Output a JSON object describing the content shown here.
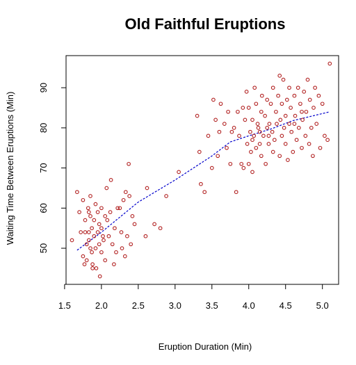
{
  "chart_data": {
    "type": "scatter",
    "title": "Old Faithful Eruptions",
    "xlabel": "Eruption Duration (Min)",
    "ylabel": "Waiting Time Between Eruptions (Min)",
    "xlim": [
      1.52,
      5.22
    ],
    "ylim": [
      41,
      98
    ],
    "xticks": [
      1.5,
      2.0,
      2.5,
      3.0,
      3.5,
      4.0,
      4.5,
      5.0
    ],
    "xtick_labels": [
      "1.5",
      "2.0",
      "2.5",
      "3.0",
      "3.5",
      "4.0",
      "4.5",
      "5.0"
    ],
    "yticks": [
      50,
      60,
      70,
      80,
      90
    ],
    "ytick_labels": [
      "50",
      "60",
      "70",
      "80",
      "90"
    ],
    "grid": false,
    "point_color": "#b22222",
    "line_color": "#0000cc",
    "series": [
      {
        "style": "points",
        "points": [
          [
            1.6,
            52
          ],
          [
            1.67,
            64
          ],
          [
            1.7,
            59
          ],
          [
            1.72,
            54
          ],
          [
            1.75,
            62
          ],
          [
            1.75,
            48
          ],
          [
            1.77,
            46
          ],
          [
            1.78,
            57
          ],
          [
            1.78,
            54
          ],
          [
            1.8,
            51
          ],
          [
            1.8,
            47
          ],
          [
            1.82,
            60
          ],
          [
            1.83,
            59
          ],
          [
            1.83,
            54
          ],
          [
            1.83,
            52
          ],
          [
            1.85,
            63
          ],
          [
            1.85,
            58
          ],
          [
            1.85,
            50
          ],
          [
            1.87,
            55
          ],
          [
            1.87,
            49
          ],
          [
            1.88,
            46
          ],
          [
            1.88,
            45
          ],
          [
            1.9,
            57
          ],
          [
            1.9,
            53
          ],
          [
            1.92,
            61
          ],
          [
            1.92,
            50
          ],
          [
            1.93,
            45
          ],
          [
            1.95,
            59
          ],
          [
            1.95,
            54
          ],
          [
            1.97,
            56
          ],
          [
            1.97,
            51
          ],
          [
            1.98,
            43
          ],
          [
            2.0,
            60
          ],
          [
            2.0,
            55
          ],
          [
            2.0,
            49
          ],
          [
            2.02,
            53
          ],
          [
            2.03,
            52
          ],
          [
            2.05,
            58
          ],
          [
            2.05,
            47
          ],
          [
            2.07,
            65
          ],
          [
            2.08,
            57
          ],
          [
            2.1,
            53
          ],
          [
            2.12,
            59
          ],
          [
            2.13,
            67
          ],
          [
            2.15,
            51
          ],
          [
            2.17,
            46
          ],
          [
            2.18,
            55
          ],
          [
            2.2,
            49
          ],
          [
            2.22,
            60
          ],
          [
            2.25,
            60
          ],
          [
            2.27,
            54
          ],
          [
            2.28,
            50
          ],
          [
            2.3,
            62
          ],
          [
            2.32,
            48
          ],
          [
            2.33,
            64
          ],
          [
            2.35,
            53
          ],
          [
            2.37,
            71
          ],
          [
            2.38,
            63
          ],
          [
            2.4,
            51
          ],
          [
            2.42,
            58
          ],
          [
            2.45,
            56
          ],
          [
            2.6,
            53
          ],
          [
            2.62,
            65
          ],
          [
            2.72,
            56
          ],
          [
            2.8,
            55
          ],
          [
            2.88,
            63
          ],
          [
            3.05,
            69
          ],
          [
            3.3,
            83
          ],
          [
            3.33,
            74
          ],
          [
            3.35,
            66
          ],
          [
            3.4,
            64
          ],
          [
            3.45,
            78
          ],
          [
            3.5,
            70
          ],
          [
            3.52,
            87
          ],
          [
            3.55,
            82
          ],
          [
            3.58,
            73
          ],
          [
            3.6,
            79
          ],
          [
            3.62,
            86
          ],
          [
            3.67,
            81
          ],
          [
            3.7,
            75
          ],
          [
            3.72,
            84
          ],
          [
            3.75,
            71
          ],
          [
            3.77,
            79
          ],
          [
            3.8,
            80
          ],
          [
            3.83,
            64
          ],
          [
            3.85,
            84
          ],
          [
            3.87,
            78
          ],
          [
            3.9,
            71
          ],
          [
            3.92,
            85
          ],
          [
            3.93,
            70
          ],
          [
            3.95,
            82
          ],
          [
            3.97,
            89
          ],
          [
            3.98,
            76
          ],
          [
            4.0,
            71
          ],
          [
            4.0,
            85
          ],
          [
            4.02,
            79
          ],
          [
            4.03,
            74
          ],
          [
            4.05,
            69
          ],
          [
            4.05,
            82
          ],
          [
            4.07,
            78
          ],
          [
            4.08,
            90
          ],
          [
            4.1,
            86
          ],
          [
            4.1,
            75
          ],
          [
            4.12,
            81
          ],
          [
            4.13,
            80
          ],
          [
            4.15,
            76
          ],
          [
            4.17,
            73
          ],
          [
            4.17,
            84
          ],
          [
            4.18,
            88
          ],
          [
            4.2,
            78
          ],
          [
            4.22,
            83
          ],
          [
            4.23,
            71
          ],
          [
            4.25,
            80
          ],
          [
            4.25,
            87
          ],
          [
            4.27,
            76
          ],
          [
            4.28,
            81
          ],
          [
            4.3,
            86
          ],
          [
            4.32,
            79
          ],
          [
            4.33,
            74
          ],
          [
            4.33,
            90
          ],
          [
            4.35,
            77
          ],
          [
            4.37,
            84
          ],
          [
            4.38,
            81
          ],
          [
            4.4,
            88
          ],
          [
            4.42,
            73
          ],
          [
            4.43,
            82
          ],
          [
            4.45,
            86
          ],
          [
            4.45,
            78
          ],
          [
            4.47,
            92
          ],
          [
            4.48,
            80
          ],
          [
            4.5,
            83
          ],
          [
            4.5,
            76
          ],
          [
            4.52,
            87
          ],
          [
            4.53,
            72
          ],
          [
            4.55,
            81
          ],
          [
            4.57,
            85
          ],
          [
            4.58,
            79
          ],
          [
            4.6,
            74
          ],
          [
            4.62,
            88
          ],
          [
            4.63,
            83
          ],
          [
            4.65,
            77
          ],
          [
            4.67,
            90
          ],
          [
            4.68,
            80
          ],
          [
            4.7,
            86
          ],
          [
            4.72,
            75
          ],
          [
            4.73,
            82
          ],
          [
            4.75,
            89
          ],
          [
            4.77,
            78
          ],
          [
            4.78,
            84
          ],
          [
            4.8,
            92
          ],
          [
            4.82,
            76
          ],
          [
            4.83,
            87
          ],
          [
            4.85,
            80
          ],
          [
            4.87,
            73
          ],
          [
            4.88,
            85
          ],
          [
            4.9,
            90
          ],
          [
            4.92,
            81
          ],
          [
            4.95,
            88
          ],
          [
            4.97,
            75
          ],
          [
            5.0,
            86
          ],
          [
            5.03,
            78
          ],
          [
            5.07,
            77
          ],
          [
            5.1,
            96
          ],
          [
            4.42,
            93
          ],
          [
            4.55,
            90
          ],
          [
            4.15,
            79
          ],
          [
            4.27,
            78
          ],
          [
            4.62,
            81
          ],
          [
            4.72,
            84
          ],
          [
            4.05,
            77
          ]
        ]
      },
      {
        "style": "dashed-line",
        "points": [
          [
            1.67,
            49.5
          ],
          [
            2.0,
            54.0
          ],
          [
            2.5,
            61.5
          ],
          [
            3.0,
            67.0
          ],
          [
            3.5,
            73.0
          ],
          [
            3.75,
            76.5
          ],
          [
            4.0,
            78.0
          ],
          [
            4.3,
            79.7
          ],
          [
            4.6,
            81.8
          ],
          [
            5.1,
            84.0
          ]
        ]
      }
    ]
  }
}
